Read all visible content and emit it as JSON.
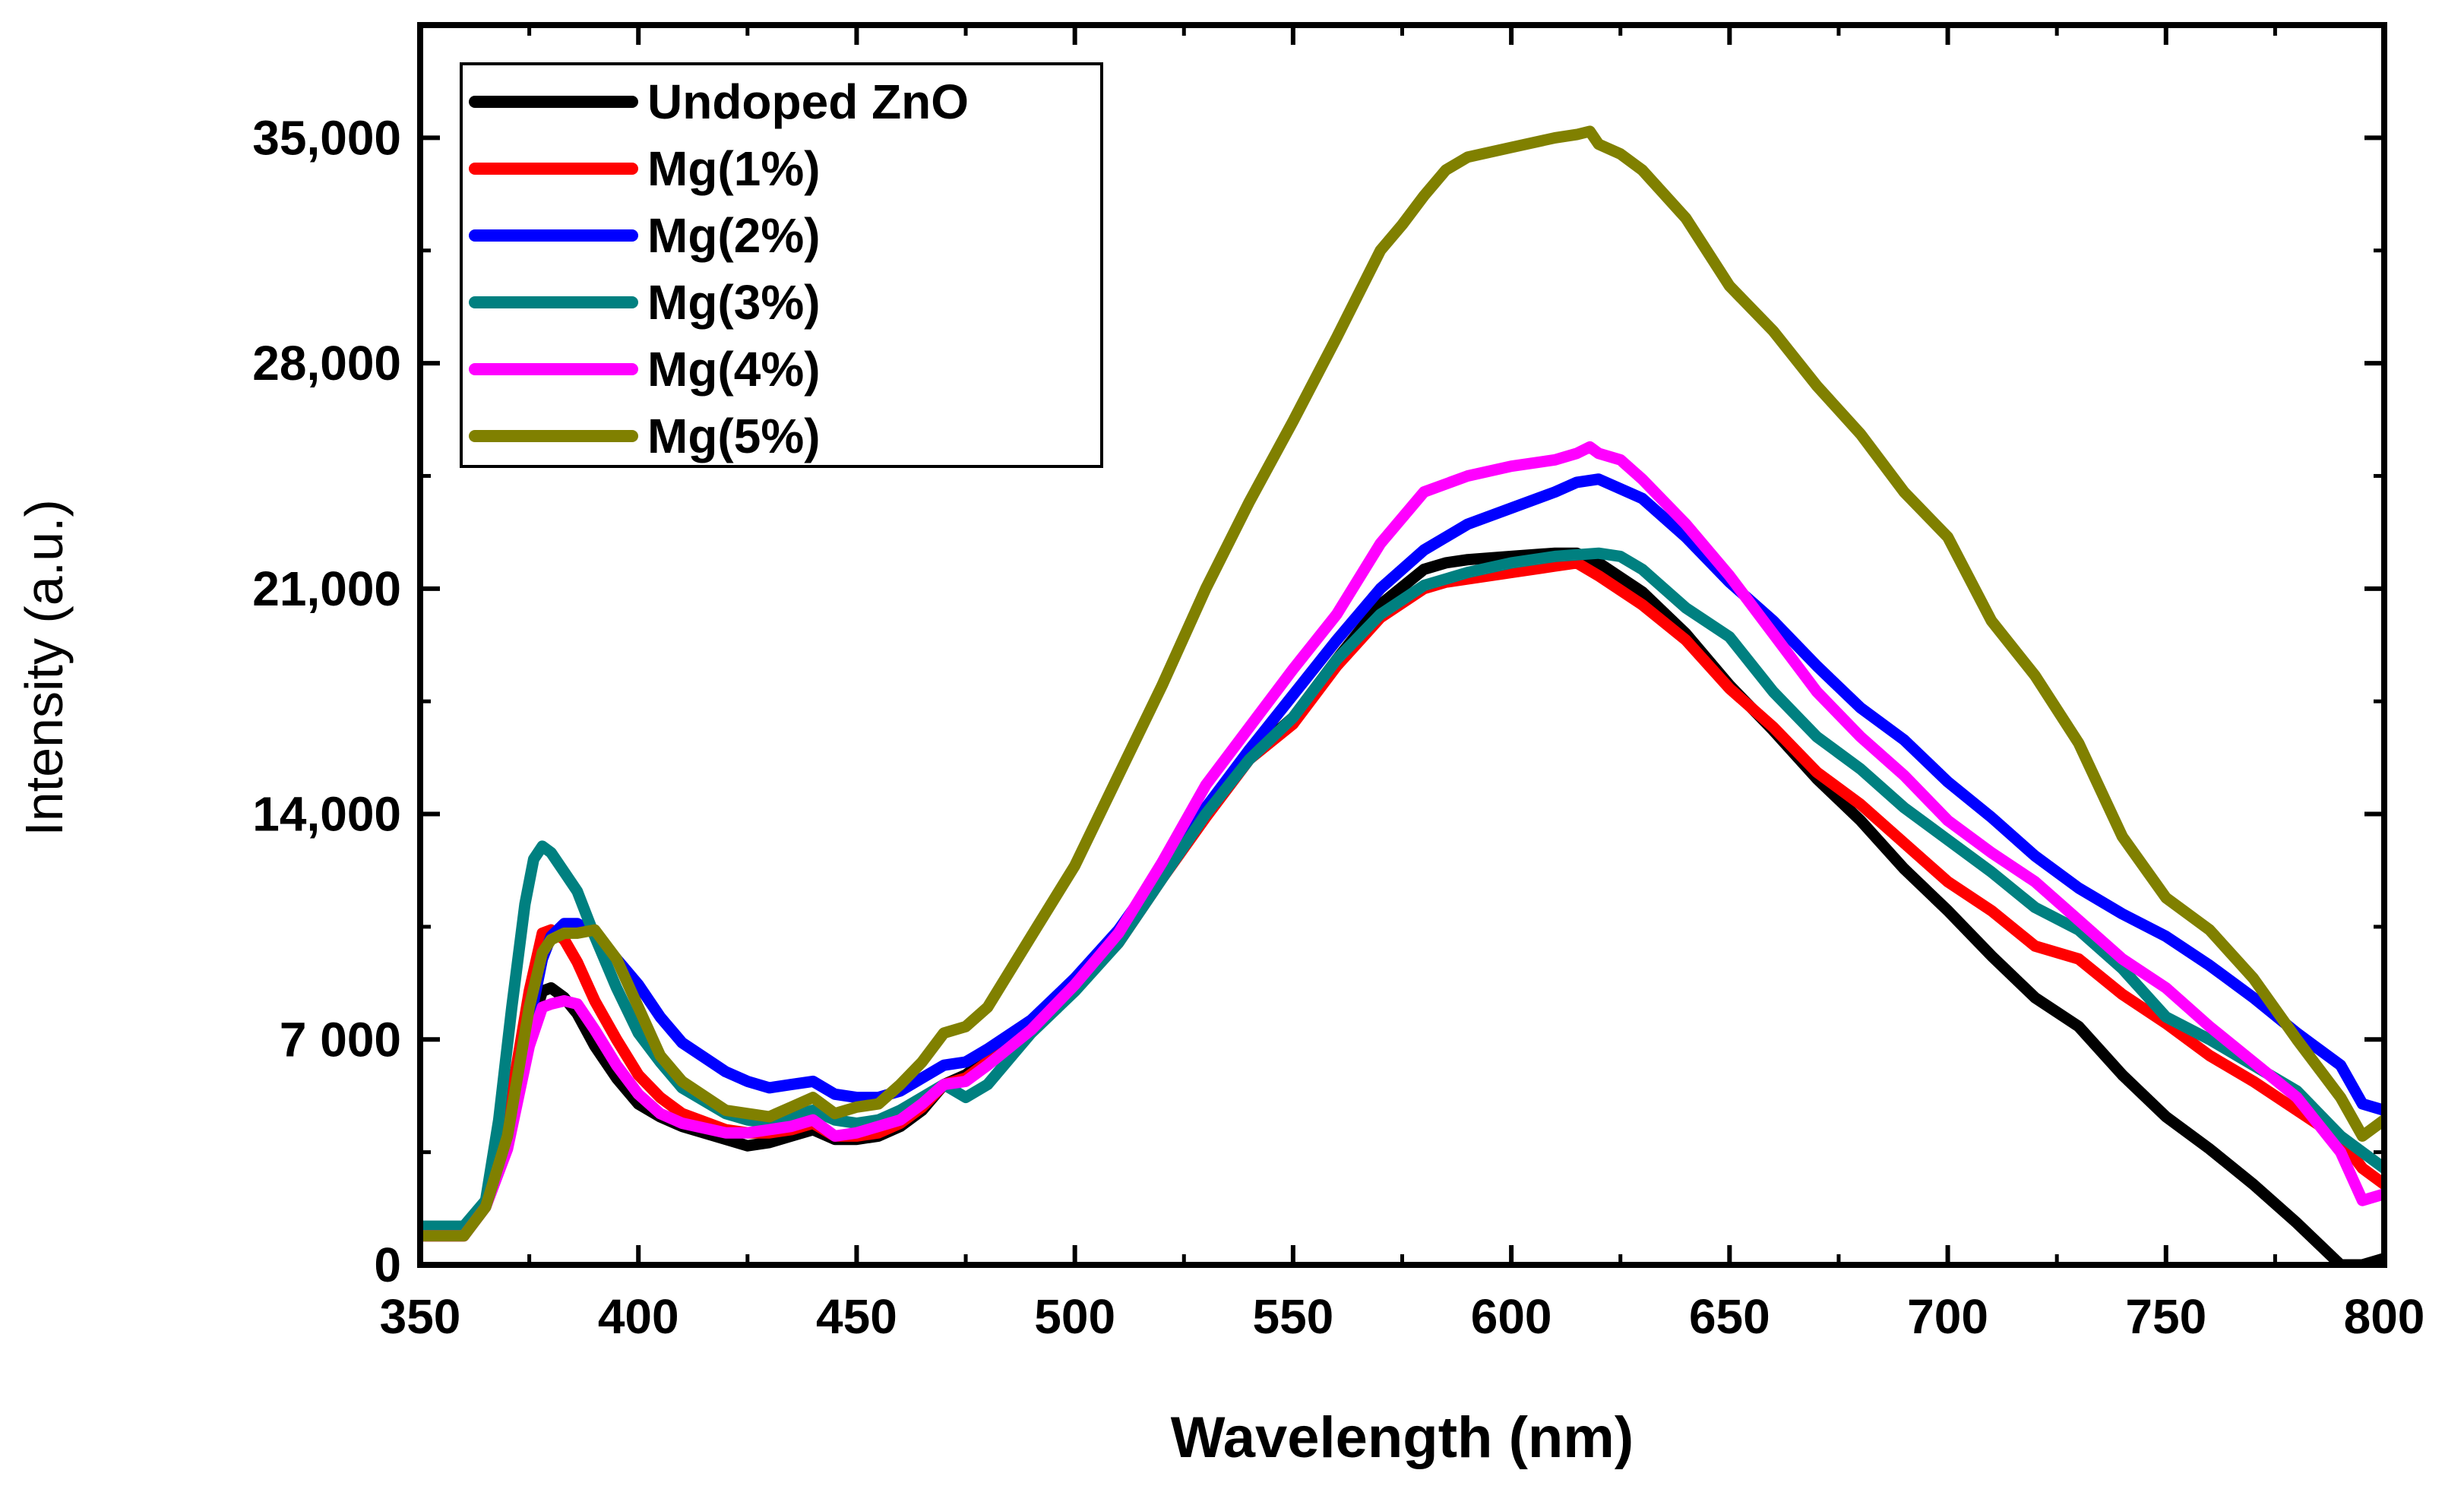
{
  "chart_data": {
    "type": "line",
    "title": "",
    "xlabel": "Wavelength (nm)",
    "ylabel": "Intensity (a.u.)",
    "xlim": [
      350,
      800
    ],
    "ylim": [
      0,
      38500
    ],
    "x_ticks": [
      350,
      400,
      450,
      500,
      550,
      600,
      650,
      700,
      750,
      800
    ],
    "x_tick_labels": [
      "350",
      "400",
      "450",
      "500",
      "550",
      "600",
      "650",
      "700",
      "750",
      "800"
    ],
    "y_ticks": [
      0,
      7000,
      14000,
      21000,
      28000,
      35000
    ],
    "y_tick_labels": [
      "0",
      "7 000",
      "14,000",
      "21,000",
      "28,000",
      "35,000"
    ],
    "grid": false,
    "legend_position": "top-left",
    "series": [
      {
        "name": "Undoped ZnO",
        "color": "#000000",
        "x": [
          350,
          360,
          365,
          370,
          375,
          378,
          380,
          383,
          386,
          390,
          395,
          400,
          405,
          410,
          420,
          425,
          430,
          435,
          440,
          445,
          450,
          455,
          460,
          465,
          470,
          475,
          480,
          490,
          500,
          510,
          520,
          530,
          540,
          550,
          560,
          570,
          580,
          585,
          590,
          600,
          610,
          615,
          620,
          630,
          640,
          650,
          660,
          670,
          680,
          690,
          700,
          710,
          720,
          730,
          740,
          750,
          760,
          770,
          780,
          790,
          795,
          800
        ],
        "y": [
          1000,
          1000,
          2000,
          4000,
          7200,
          8500,
          8600,
          8300,
          7800,
          6800,
          5800,
          5000,
          4600,
          4300,
          3900,
          3700,
          3800,
          4000,
          4200,
          3900,
          3900,
          4000,
          4300,
          4800,
          5600,
          5900,
          6400,
          7500,
          8700,
          10300,
          12300,
          14000,
          15800,
          17000,
          18800,
          20500,
          21600,
          21800,
          21900,
          22000,
          22100,
          22100,
          21800,
          20900,
          19600,
          18000,
          16600,
          15100,
          13800,
          12300,
          11000,
          9600,
          8300,
          7400,
          5900,
          4600,
          3600,
          2500,
          1300,
          0,
          0,
          200
        ]
      },
      {
        "name": "Mg(1%)",
        "color": "#ff0000",
        "x": [
          350,
          360,
          365,
          370,
          375,
          378,
          380,
          383,
          386,
          390,
          395,
          400,
          405,
          410,
          420,
          425,
          430,
          435,
          440,
          445,
          450,
          455,
          460,
          465,
          470,
          475,
          480,
          490,
          500,
          510,
          520,
          530,
          540,
          550,
          560,
          570,
          580,
          585,
          590,
          600,
          610,
          615,
          620,
          630,
          640,
          650,
          660,
          670,
          680,
          690,
          700,
          710,
          720,
          730,
          740,
          750,
          760,
          770,
          780,
          790,
          795,
          800
        ],
        "y": [
          900,
          900,
          2000,
          4500,
          8500,
          10300,
          10400,
          10100,
          9400,
          8200,
          7000,
          5900,
          5200,
          4700,
          4200,
          4100,
          4100,
          4200,
          4400,
          4000,
          4000,
          4100,
          4400,
          4900,
          5600,
          5800,
          6300,
          7300,
          8600,
          10000,
          12000,
          13900,
          15700,
          16800,
          18600,
          20100,
          21000,
          21200,
          21300,
          21500,
          21700,
          21800,
          21400,
          20500,
          19400,
          17900,
          16700,
          15300,
          14300,
          13100,
          11900,
          11000,
          9900,
          9500,
          8400,
          7500,
          6500,
          5700,
          4800,
          3900,
          3000,
          2500
        ]
      },
      {
        "name": "Mg(2%)",
        "color": "#0000ff",
        "x": [
          350,
          360,
          365,
          370,
          375,
          378,
          380,
          383,
          386,
          390,
          395,
          400,
          405,
          410,
          420,
          425,
          430,
          435,
          440,
          445,
          450,
          455,
          460,
          465,
          470,
          475,
          480,
          490,
          500,
          510,
          520,
          530,
          540,
          550,
          560,
          570,
          580,
          590,
          600,
          610,
          615,
          620,
          630,
          640,
          650,
          660,
          670,
          680,
          690,
          700,
          710,
          720,
          730,
          740,
          750,
          760,
          770,
          780,
          790,
          795,
          800
        ],
        "y": [
          1000,
          1000,
          2000,
          4000,
          7500,
          9500,
          10200,
          10600,
          10600,
          10300,
          9500,
          8700,
          7700,
          6900,
          6000,
          5700,
          5500,
          5600,
          5700,
          5300,
          5200,
          5200,
          5400,
          5800,
          6200,
          6300,
          6700,
          7600,
          8900,
          10400,
          12300,
          14200,
          16000,
          17700,
          19400,
          21000,
          22200,
          23000,
          23500,
          24000,
          24300,
          24400,
          23800,
          22600,
          21200,
          20000,
          18600,
          17300,
          16300,
          15000,
          13900,
          12700,
          11700,
          10900,
          10200,
          9300,
          8300,
          7200,
          6200,
          5000,
          4800
        ]
      },
      {
        "name": "Mg(3%)",
        "color": "#008080",
        "x": [
          350,
          360,
          365,
          368,
          371,
          374,
          376,
          378,
          380,
          383,
          386,
          390,
          395,
          400,
          405,
          410,
          420,
          425,
          430,
          435,
          440,
          445,
          450,
          455,
          460,
          465,
          470,
          475,
          480,
          490,
          500,
          510,
          520,
          530,
          540,
          550,
          560,
          570,
          580,
          590,
          600,
          610,
          620,
          625,
          630,
          640,
          650,
          660,
          670,
          680,
          690,
          700,
          710,
          720,
          730,
          740,
          750,
          760,
          770,
          780,
          790,
          795,
          800
        ],
        "y": [
          1200,
          1200,
          2000,
          4500,
          8000,
          11200,
          12600,
          13000,
          12800,
          12200,
          11600,
          10200,
          8600,
          7200,
          6300,
          5500,
          4700,
          4500,
          4400,
          4600,
          4800,
          4500,
          4400,
          4500,
          4800,
          5200,
          5600,
          5200,
          5600,
          7200,
          8500,
          10000,
          12000,
          14000,
          15700,
          17000,
          18800,
          20200,
          21100,
          21500,
          21800,
          22000,
          22100,
          22000,
          21600,
          20400,
          19500,
          17800,
          16400,
          15400,
          14200,
          13200,
          12200,
          11100,
          10400,
          9200,
          7700,
          7000,
          6200,
          5400,
          4000,
          3500,
          3000
        ]
      },
      {
        "name": "Mg(4%)",
        "color": "#ff00ff",
        "x": [
          350,
          360,
          365,
          370,
          375,
          378,
          380,
          383,
          386,
          390,
          395,
          400,
          405,
          410,
          420,
          425,
          430,
          435,
          440,
          445,
          450,
          455,
          460,
          465,
          470,
          475,
          480,
          490,
          500,
          510,
          520,
          530,
          540,
          550,
          560,
          570,
          580,
          590,
          600,
          610,
          615,
          618,
          620,
          625,
          630,
          640,
          650,
          660,
          670,
          680,
          690,
          700,
          710,
          720,
          730,
          740,
          750,
          760,
          770,
          780,
          790,
          795,
          800
        ],
        "y": [
          900,
          900,
          1800,
          3600,
          6800,
          8000,
          8100,
          8200,
          8100,
          7300,
          6200,
          5300,
          4700,
          4400,
          4100,
          4100,
          4200,
          4300,
          4500,
          4000,
          4100,
          4300,
          4500,
          5000,
          5600,
          5700,
          6200,
          7300,
          8700,
          10300,
          12500,
          14900,
          16700,
          18500,
          20200,
          22400,
          24000,
          24500,
          24800,
          25000,
          25200,
          25400,
          25200,
          25000,
          24400,
          23000,
          21400,
          19600,
          17800,
          16400,
          15200,
          13800,
          12800,
          11900,
          10700,
          9500,
          8600,
          7400,
          6300,
          5200,
          3500,
          2000,
          2200
        ]
      },
      {
        "name": "Mg(5%)",
        "color": "#808000",
        "x": [
          350,
          360,
          365,
          370,
          375,
          378,
          380,
          383,
          386,
          390,
          395,
          400,
          405,
          410,
          420,
          425,
          430,
          435,
          440,
          445,
          450,
          455,
          460,
          465,
          470,
          475,
          480,
          490,
          500,
          510,
          520,
          530,
          540,
          550,
          560,
          570,
          575,
          580,
          585,
          590,
          600,
          610,
          615,
          618,
          620,
          625,
          630,
          640,
          650,
          660,
          670,
          680,
          690,
          700,
          710,
          720,
          730,
          740,
          750,
          760,
          770,
          780,
          790,
          795,
          800
        ],
        "y": [
          900,
          900,
          1800,
          4000,
          8000,
          9700,
          10100,
          10300,
          10300,
          10400,
          9500,
          8000,
          6500,
          5700,
          4800,
          4700,
          4600,
          4900,
          5200,
          4700,
          4900,
          5000,
          5600,
          6300,
          7200,
          7400,
          8000,
          10200,
          12400,
          15200,
          18000,
          21000,
          23700,
          26200,
          28800,
          31500,
          32300,
          33200,
          34000,
          34400,
          34700,
          35000,
          35100,
          35200,
          34800,
          34500,
          34000,
          32500,
          30400,
          29000,
          27300,
          25800,
          24000,
          22600,
          20000,
          18300,
          16200,
          13300,
          11400,
          10400,
          8900,
          7000,
          5200,
          4000,
          4500
        ]
      }
    ]
  }
}
